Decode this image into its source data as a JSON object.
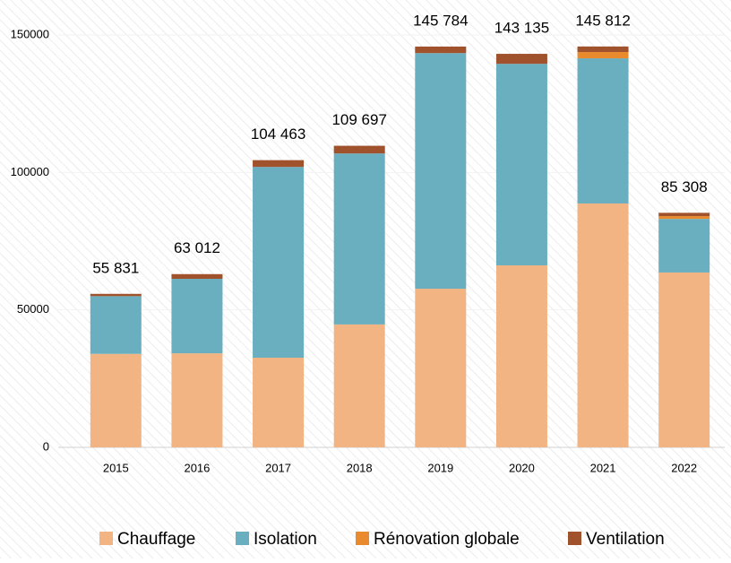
{
  "chart_data": {
    "type": "stacked_bar",
    "categories": [
      "2015",
      "2016",
      "2017",
      "2018",
      "2019",
      "2020",
      "2021",
      "2022"
    ],
    "series": [
      {
        "name": "Chauffage",
        "color": "#f2b482",
        "values": [
          34000,
          34200,
          32600,
          44700,
          57700,
          66200,
          88700,
          63600
        ]
      },
      {
        "name": "Isolation",
        "color": "#6aafbf",
        "values": [
          21000,
          27100,
          69400,
          62200,
          85700,
          73300,
          52800,
          19500
        ]
      },
      {
        "name": "Rénovation globale",
        "color": "#e98a2e",
        "values": [
          0,
          0,
          0,
          0,
          0,
          0,
          2300,
          1000
        ]
      },
      {
        "name": "Ventilation",
        "color": "#a0522d",
        "values": [
          831,
          1712,
          2463,
          2797,
          2384,
          3635,
          2012,
          1208
        ]
      }
    ],
    "totals": [
      55831,
      63012,
      104463,
      109697,
      145784,
      143135,
      145812,
      85308
    ],
    "total_labels": [
      "55 831",
      "63 012",
      "104 463",
      "109 697",
      "145 784",
      "143 135",
      "145 812",
      "85 308"
    ],
    "ylim": [
      0,
      150000
    ],
    "yticks": [
      0,
      50000,
      100000,
      150000
    ],
    "grid": true,
    "legend": "bottom"
  }
}
